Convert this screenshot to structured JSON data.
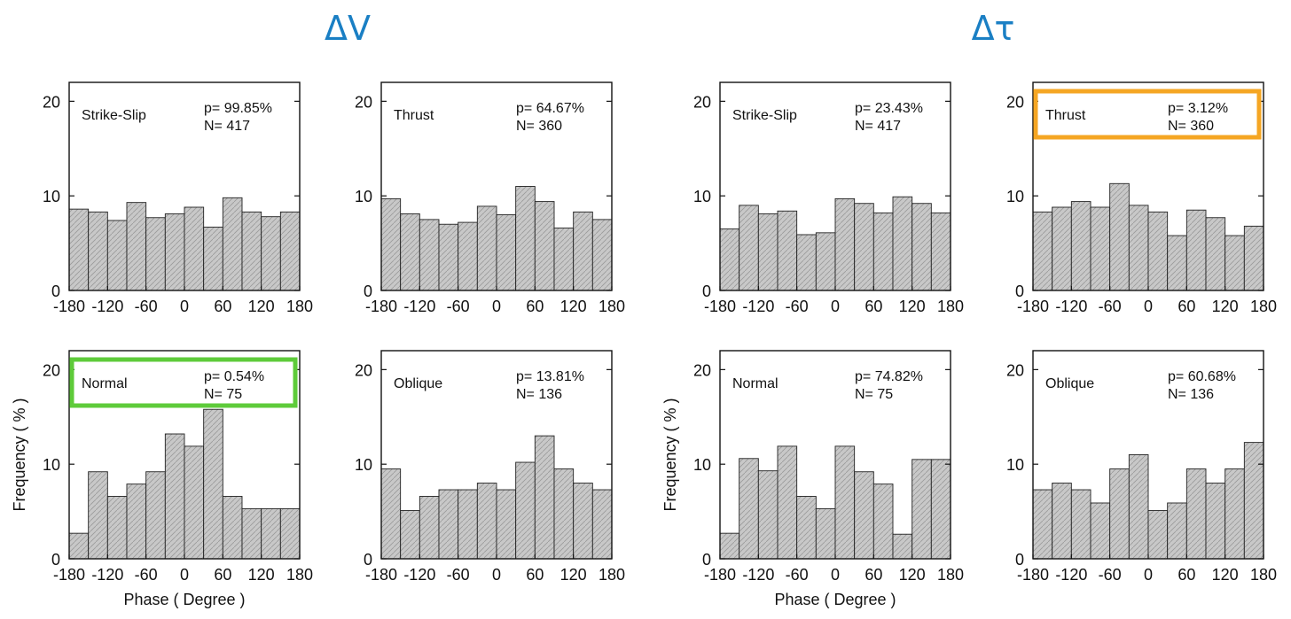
{
  "group_titles": {
    "left": "ΔV",
    "right": "Δτ"
  },
  "colors": {
    "group_title": "#1a7fc4",
    "highlight_green": "#5ecb3a",
    "highlight_orange": "#f5a623",
    "bar_fill": "#c8c8c8",
    "bar_stroke": "#222222"
  },
  "chart_data": [
    {
      "type": "bar",
      "group": "ΔV",
      "label": "Strike-Slip",
      "p": "p= 99.85%",
      "n": "N= 417",
      "bin_edges": [
        -180,
        -150,
        -120,
        -90,
        -60,
        -30,
        0,
        30,
        60,
        90,
        120,
        150,
        180
      ],
      "values": [
        8.6,
        8.3,
        7.4,
        9.3,
        7.7,
        8.1,
        8.8,
        6.7,
        9.8,
        8.3,
        7.8,
        8.3
      ],
      "ylim": [
        0,
        22
      ],
      "yticks": [
        "0",
        "10",
        "20"
      ],
      "xticks": [
        "-180",
        "-120",
        "-60",
        "0",
        "60",
        "120",
        "180"
      ],
      "xlabel": "",
      "ylabel": "",
      "highlight": ""
    },
    {
      "type": "bar",
      "group": "ΔV",
      "label": "Thrust",
      "p": "p= 64.67%",
      "n": "N= 360",
      "bin_edges": [
        -180,
        -150,
        -120,
        -90,
        -60,
        -30,
        0,
        30,
        60,
        90,
        120,
        150,
        180
      ],
      "values": [
        9.7,
        8.1,
        7.5,
        7.0,
        7.2,
        8.9,
        8.0,
        11.0,
        9.4,
        6.6,
        8.3,
        7.5
      ],
      "ylim": [
        0,
        22
      ],
      "yticks": [
        "0",
        "10",
        "20"
      ],
      "xticks": [
        "-180",
        "-120",
        "-60",
        "0",
        "60",
        "120",
        "180"
      ],
      "xlabel": "",
      "ylabel": "",
      "highlight": ""
    },
    {
      "type": "bar",
      "group": "Δτ",
      "label": "Strike-Slip",
      "p": "p= 23.43%",
      "n": "N= 417",
      "bin_edges": [
        -180,
        -150,
        -120,
        -90,
        -60,
        -30,
        0,
        30,
        60,
        90,
        120,
        150,
        180
      ],
      "values": [
        6.5,
        9.0,
        8.1,
        8.4,
        5.9,
        6.1,
        9.7,
        9.2,
        8.2,
        9.9,
        9.2,
        8.2
      ],
      "ylim": [
        0,
        22
      ],
      "yticks": [
        "0",
        "10",
        "20"
      ],
      "xticks": [
        "-180",
        "-120",
        "-60",
        "0",
        "60",
        "120",
        "180"
      ],
      "xlabel": "",
      "ylabel": "",
      "highlight": ""
    },
    {
      "type": "bar",
      "group": "Δτ",
      "label": "Thrust",
      "p": "p=  3.12%",
      "n": "N= 360",
      "bin_edges": [
        -180,
        -150,
        -120,
        -90,
        -60,
        -30,
        0,
        30,
        60,
        90,
        120,
        150,
        180
      ],
      "values": [
        8.3,
        8.8,
        9.4,
        8.8,
        11.3,
        9.0,
        8.3,
        5.8,
        8.5,
        7.7,
        5.8,
        6.8
      ],
      "ylim": [
        0,
        22
      ],
      "yticks": [
        "0",
        "10",
        "20"
      ],
      "xticks": [
        "-180",
        "-120",
        "-60",
        "0",
        "60",
        "120",
        "180"
      ],
      "xlabel": "",
      "ylabel": "",
      "highlight": "orange"
    },
    {
      "type": "bar",
      "group": "ΔV",
      "label": "Normal",
      "p": "p=  0.54%",
      "n": "N=  75",
      "bin_edges": [
        -180,
        -150,
        -120,
        -90,
        -60,
        -30,
        0,
        30,
        60,
        90,
        120,
        150,
        180
      ],
      "values": [
        2.7,
        9.2,
        6.6,
        7.9,
        9.2,
        13.2,
        11.9,
        15.8,
        6.6,
        5.3,
        5.3,
        5.3
      ],
      "ylim": [
        0,
        22
      ],
      "yticks": [
        "0",
        "10",
        "20"
      ],
      "xticks": [
        "-180",
        "-120",
        "-60",
        "0",
        "60",
        "120",
        "180"
      ],
      "xlabel": "Phase ( Degree )",
      "ylabel": "Frequency ( % )",
      "highlight": "green"
    },
    {
      "type": "bar",
      "group": "ΔV",
      "label": "Oblique",
      "p": "p= 13.81%",
      "n": "N= 136",
      "bin_edges": [
        -180,
        -150,
        -120,
        -90,
        -60,
        -30,
        0,
        30,
        60,
        90,
        120,
        150,
        180
      ],
      "values": [
        9.5,
        5.1,
        6.6,
        7.3,
        7.3,
        8.0,
        7.3,
        10.2,
        13.0,
        9.5,
        8.0,
        7.3
      ],
      "ylim": [
        0,
        22
      ],
      "yticks": [
        "0",
        "10",
        "20"
      ],
      "xticks": [
        "-180",
        "-120",
        "-60",
        "0",
        "60",
        "120",
        "180"
      ],
      "xlabel": "",
      "ylabel": "",
      "highlight": ""
    },
    {
      "type": "bar",
      "group": "Δτ",
      "label": "Normal",
      "p": "p= 74.82%",
      "n": "N=  75",
      "bin_edges": [
        -180,
        -150,
        -120,
        -90,
        -60,
        -30,
        0,
        30,
        60,
        90,
        120,
        150,
        180
      ],
      "values": [
        2.7,
        10.6,
        9.3,
        11.9,
        6.6,
        5.3,
        11.9,
        9.2,
        7.9,
        2.6,
        10.5,
        10.5
      ],
      "ylim": [
        0,
        22
      ],
      "yticks": [
        "0",
        "10",
        "20"
      ],
      "xticks": [
        "-180",
        "-120",
        "-60",
        "0",
        "60",
        "120",
        "180"
      ],
      "xlabel": "Phase ( Degree )",
      "ylabel": "Frequency ( % )",
      "highlight": ""
    },
    {
      "type": "bar",
      "group": "Δτ",
      "label": "Oblique",
      "p": "p= 60.68%",
      "n": "N= 136",
      "bin_edges": [
        -180,
        -150,
        -120,
        -90,
        -60,
        -30,
        0,
        30,
        60,
        90,
        120,
        150,
        180
      ],
      "values": [
        7.3,
        8.0,
        7.3,
        5.9,
        9.5,
        11.0,
        5.1,
        5.9,
        9.5,
        8.0,
        9.5,
        12.3
      ],
      "ylim": [
        0,
        22
      ],
      "yticks": [
        "0",
        "10",
        "20"
      ],
      "xticks": [
        "-180",
        "-120",
        "-60",
        "0",
        "60",
        "120",
        "180"
      ],
      "xlabel": "",
      "ylabel": "",
      "highlight": ""
    }
  ]
}
